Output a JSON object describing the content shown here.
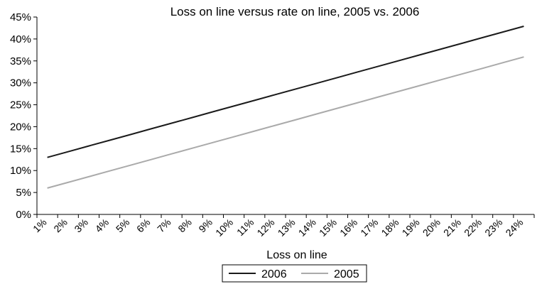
{
  "chart_data": {
    "type": "line",
    "title": "Loss on line versus rate on line, 2005 vs. 2006",
    "xlabel": "Loss on line",
    "ylabel": "",
    "categories": [
      "1%",
      "2%",
      "3%",
      "4%",
      "5%",
      "6%",
      "7%",
      "8%",
      "9%",
      "10%",
      "11%",
      "12%",
      "13%",
      "14%",
      "15%",
      "16%",
      "17%",
      "18%",
      "19%",
      "20%",
      "21%",
      "22%",
      "23%",
      "24%"
    ],
    "y_ticks": [
      "0%",
      "5%",
      "10%",
      "15%",
      "20%",
      "25%",
      "30%",
      "35%",
      "40%",
      "45%"
    ],
    "ylim": [
      0,
      45
    ],
    "grid": false,
    "legend_position": "bottom",
    "series": [
      {
        "name": "2006",
        "color": "#1a1a1a",
        "values": [
          13.0,
          14.3,
          15.6,
          16.9,
          18.2,
          19.5,
          20.8,
          22.1,
          23.4,
          24.7,
          26.0,
          27.3,
          28.6,
          29.9,
          31.2,
          32.5,
          33.8,
          35.1,
          36.4,
          37.7,
          39.0,
          40.3,
          41.6,
          42.9
        ]
      },
      {
        "name": "2005",
        "color": "#aaaaaa",
        "values": [
          6.0,
          7.3,
          8.6,
          9.9,
          11.2,
          12.5,
          13.8,
          15.1,
          16.4,
          17.7,
          19.0,
          20.3,
          21.6,
          22.9,
          24.2,
          25.5,
          26.8,
          28.1,
          29.4,
          30.7,
          32.0,
          33.3,
          34.6,
          35.9
        ]
      }
    ]
  }
}
